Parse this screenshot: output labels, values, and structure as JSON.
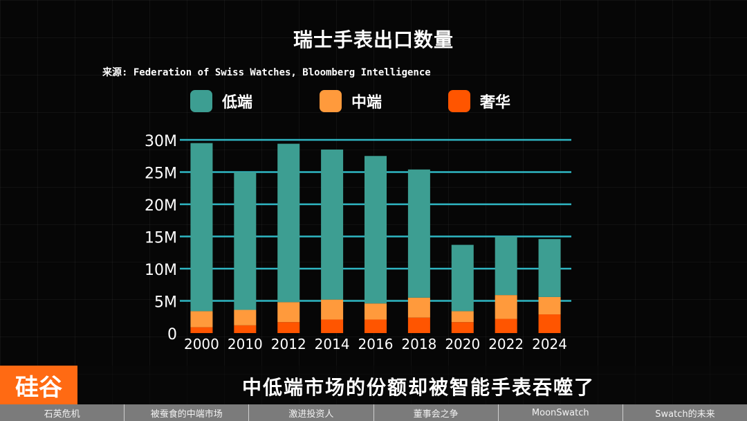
{
  "chart_data": {
    "type": "bar",
    "stacked": true,
    "title": "瑞士手表出口数量",
    "source": "来源: Federation of Swiss Watches, Bloomberg Intelligence",
    "categories": [
      "2000",
      "2010",
      "2012",
      "2014",
      "2016",
      "2018",
      "2020",
      "2022",
      "2024"
    ],
    "series": [
      {
        "name": "奢华",
        "color": "#ff5500",
        "values": [
          0.9,
          1.2,
          1.7,
          2.1,
          2.1,
          2.4,
          1.7,
          2.2,
          2.9
        ]
      },
      {
        "name": "中端",
        "color": "#ff9a3c",
        "values": [
          2.5,
          2.4,
          3.1,
          3.1,
          2.5,
          3.1,
          1.7,
          3.7,
          2.7
        ]
      },
      {
        "name": "低端",
        "color": "#3d9e92",
        "values": [
          26.1,
          21.4,
          24.6,
          23.3,
          22.9,
          19.9,
          10.3,
          9.1,
          9.0
        ]
      }
    ],
    "legend_order": [
      "低端",
      "中端",
      "奢华"
    ],
    "ylim": [
      0,
      30
    ],
    "yticks": [
      0,
      5,
      10,
      15,
      20,
      25,
      30
    ],
    "ytick_labels": [
      "0",
      "5M",
      "10M",
      "15M",
      "20M",
      "25M",
      "30M"
    ],
    "gridline_color": "#2fb7c4",
    "grid": true
  },
  "brand": {
    "logo_text": "硅谷"
  },
  "subtitle": "中低端市场的份额却被智能手表吞噬了",
  "nav": [
    "石英危机",
    "被蚕食的中端市场",
    "激进投资人",
    "董事会之争",
    "MoonSwatch",
    "Swatch的未来"
  ]
}
